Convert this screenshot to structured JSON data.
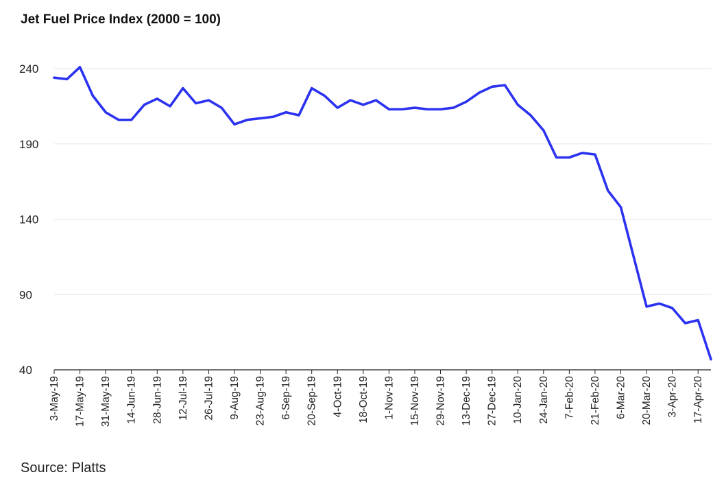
{
  "chart_data": {
    "type": "line",
    "title": "Jet Fuel Price Index (2000 = 100)",
    "source": "Source: Platts",
    "xlabel": "",
    "ylabel": "",
    "ylim": [
      40,
      250
    ],
    "yticks": [
      40,
      90,
      140,
      190,
      240
    ],
    "grid": "horizontal",
    "legend": "none",
    "line_color": "#2b32f0",
    "x_tick_labels": [
      "3-May-19",
      "17-May-19",
      "31-May-19",
      "14-Jun-19",
      "28-Jun-19",
      "12-Jul-19",
      "26-Jul-19",
      "9-Aug-19",
      "23-Aug-19",
      "6-Sep-19",
      "20-Sep-19",
      "4-Oct-19",
      "18-Oct-19",
      "1-Nov-19",
      "15-Nov-19",
      "29-Nov-19",
      "13-Dec-19",
      "27-Dec-19",
      "10-Jan-20",
      "24-Jan-20",
      "7-Feb-20",
      "21-Feb-20",
      "6-Mar-20",
      "20-Mar-20",
      "3-Apr-20",
      "17-Apr-20"
    ],
    "series": [
      {
        "values": [
          234,
          233,
          241,
          222,
          211,
          206,
          206,
          216,
          220,
          215,
          227,
          217,
          219,
          214,
          203,
          206,
          207,
          208,
          211,
          209,
          227,
          222,
          214,
          219,
          216,
          219,
          213,
          213,
          214,
          213,
          213,
          214,
          218,
          224,
          228,
          229,
          216,
          209,
          199,
          181,
          181,
          184,
          183,
          159,
          148,
          115,
          82,
          84,
          81,
          71,
          73,
          47
        ]
      }
    ]
  }
}
